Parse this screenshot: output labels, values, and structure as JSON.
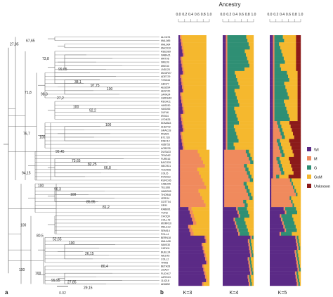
{
  "ancestry_title": "Ancestry",
  "axis_ticks": [
    "0.0",
    "0.2",
    "0.4",
    "0.6",
    "0.8",
    "1.0"
  ],
  "panel_labels": {
    "a": "a",
    "b": "b"
  },
  "scale_label": "0.02",
  "k_labels": [
    "K=3",
    "K=4",
    "K=5"
  ],
  "accessions": [
    "ALCAT4",
    "MAL085",
    "MAL064",
    "MAC010",
    "REED89",
    "NABA21",
    "MRT06",
    "NML09",
    "MKE30",
    "LNDJ20",
    "MUGR27",
    "ADE729",
    "TXS344",
    "GEN77",
    "AES554",
    "AES720",
    "LARA24",
    "GWRH40",
    "REGA11",
    "HAS030",
    "HAS055",
    "OLF46",
    "IREI34",
    "LYDN25",
    "EDMA63",
    "SHEP42",
    "GRAC28",
    "PNA45",
    "BT1728",
    "RINC12",
    "HZB753",
    "ACBZ05",
    "DUSA33",
    "TEAD82",
    "FUR516",
    "BACO39",
    "NECR31",
    "TOCR06",
    "COLI5",
    "RYAN13",
    "RURO36",
    "CABU95",
    "TELE66",
    "HAWS05",
    "THOR48",
    "VERO4",
    "GOTT04",
    "GE91",
    "RABB91",
    "YON3",
    "CHOQ9",
    "COLL76",
    "MORR10",
    "MELE12",
    "SEMI14",
    "POLL4",
    "BERN18",
    "MALA28",
    "NAV030",
    "CATA11",
    "BUEL24",
    "WEST5",
    "COLL2",
    "TRAI5",
    "BETA28",
    "LISA27",
    "FUCH17",
    "LARG24",
    "114218",
    "AD6852"
  ],
  "bootstrap": [
    {
      "row": 2.5,
      "value": "27,85"
    },
    {
      "row": 1.5,
      "value": "67,65"
    },
    {
      "row": 6.5,
      "value": "73,8"
    },
    {
      "row": 9.5,
      "value": "99,65"
    },
    {
      "row": 13,
      "value": "38,1"
    },
    {
      "row": 14,
      "value": "97,75"
    },
    {
      "row": 15,
      "value": "100"
    },
    {
      "row": 16,
      "value": "71,8"
    },
    {
      "row": 16.5,
      "value": "98,3"
    },
    {
      "row": 17.5,
      "value": "27,2"
    },
    {
      "row": 20,
      "value": "100"
    },
    {
      "row": 21,
      "value": "92,2"
    },
    {
      "row": 25,
      "value": "100"
    },
    {
      "row": 27.5,
      "value": "76,7"
    },
    {
      "row": 28.5,
      "value": "100"
    },
    {
      "row": 32.5,
      "value": "99,45"
    },
    {
      "row": 35,
      "value": "73,65"
    },
    {
      "row": 36,
      "value": "82,25"
    },
    {
      "row": 37,
      "value": "66,8"
    },
    {
      "row": 38.5,
      "value": "94,15"
    },
    {
      "row": 42,
      "value": "100"
    },
    {
      "row": 43,
      "value": "96,3"
    },
    {
      "row": 44.5,
      "value": "100"
    },
    {
      "row": 46.5,
      "value": "85,95"
    },
    {
      "row": 48,
      "value": "81,2"
    },
    {
      "row": 53,
      "value": "100"
    },
    {
      "row": 56,
      "value": "80,5"
    },
    {
      "row": 57,
      "value": "52,65"
    },
    {
      "row": 58,
      "value": "100"
    },
    {
      "row": 61,
      "value": "26,15"
    },
    {
      "row": 64.5,
      "value": "80,4"
    },
    {
      "row": 65.5,
      "value": "100"
    },
    {
      "row": 66.5,
      "value": "100"
    },
    {
      "row": 68.5,
      "value": "99,95"
    },
    {
      "row": 69,
      "value": "27,85"
    },
    {
      "row": 70.5,
      "value": "29,15"
    }
  ],
  "legend": [
    {
      "label": "WI",
      "color": "#5b2a86"
    },
    {
      "label": "M",
      "color": "#f08a5d"
    },
    {
      "label": "G",
      "color": "#2f8f74"
    },
    {
      "label": "GxM",
      "color": "#f5b82e"
    },
    {
      "label": "Unknown",
      "color": "#8b1a1a"
    }
  ],
  "colors": {
    "tree": "#555555",
    "text": "#222222"
  }
}
